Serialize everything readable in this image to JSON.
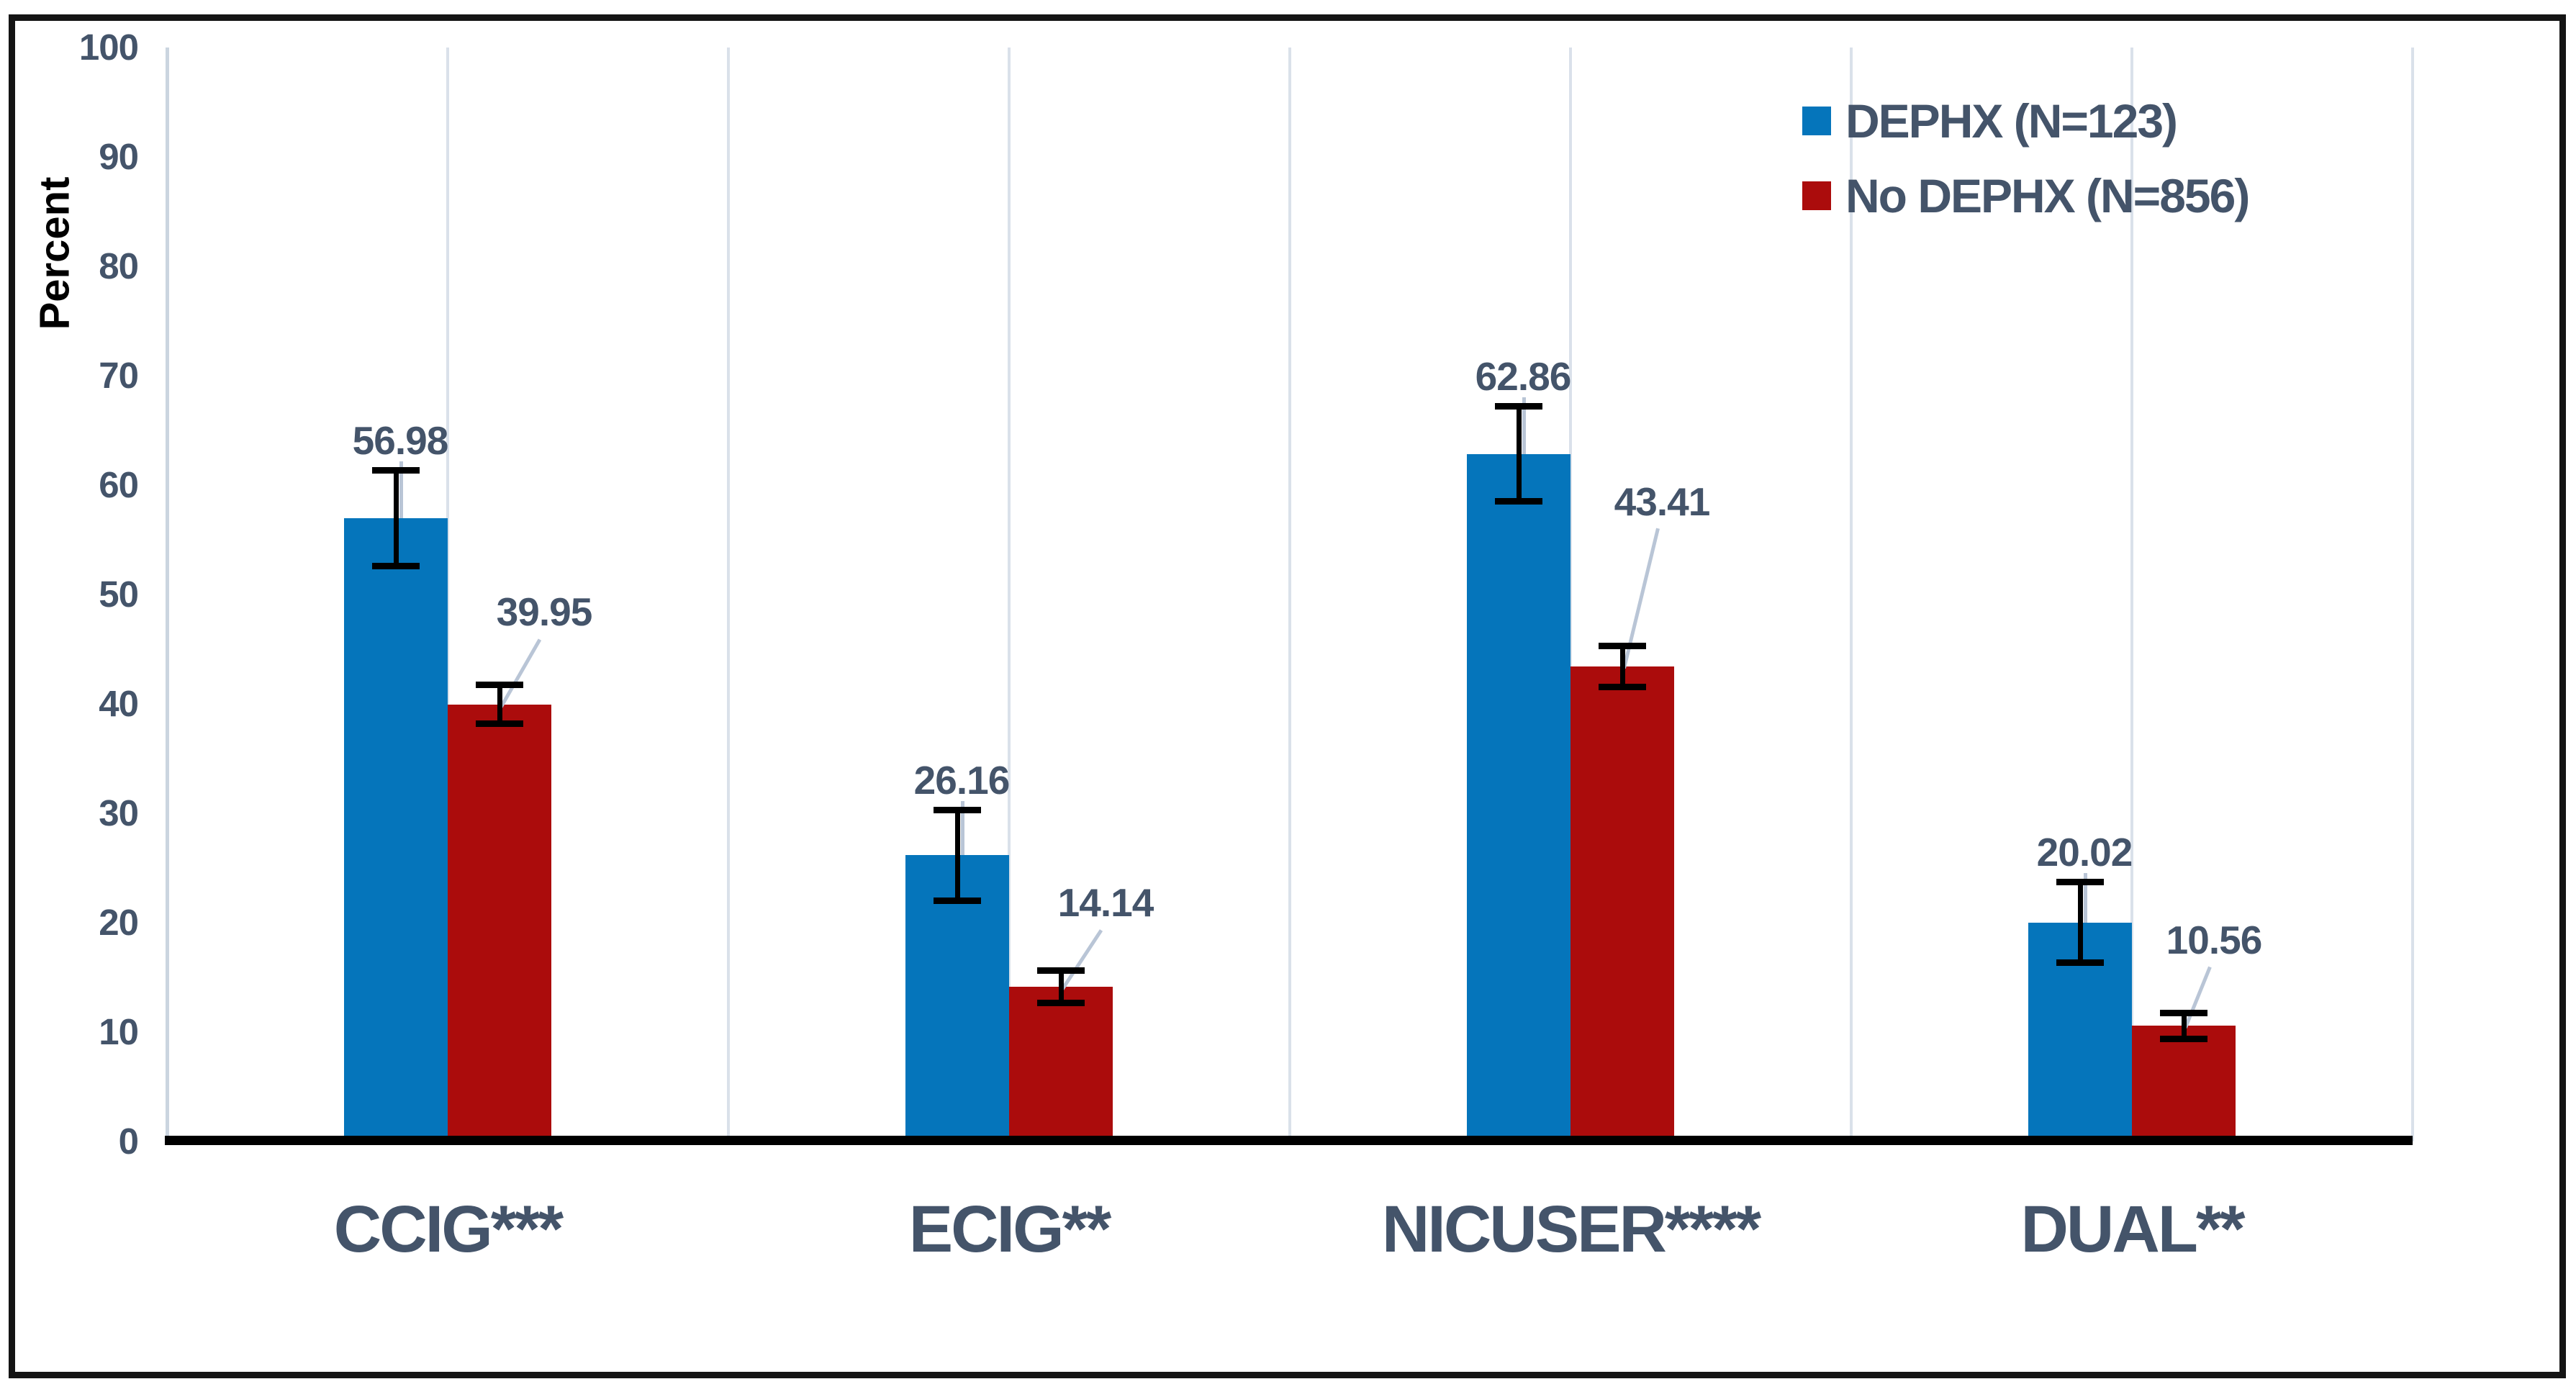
{
  "figure": {
    "background": "#FFFFFF",
    "frame_color": "#141414",
    "text_color": "#44546A",
    "grid_color": "#DAE1EA",
    "axis_line_color": "#CBD5E0",
    "baseline_color": "#000000",
    "error_bar_color": "#000000",
    "leader_line_color": "#B9C5D6"
  },
  "chart_data": {
    "type": "bar",
    "title": "",
    "xlabel": "",
    "ylabel": "Percent",
    "ylim": [
      0,
      100
    ],
    "yticks": [
      0,
      10,
      20,
      30,
      40,
      50,
      60,
      70,
      80,
      90,
      100
    ],
    "grid": "vertical-only",
    "legend_position": "top-right",
    "data_labels": true,
    "categories": [
      "CCIG***",
      "ECIG**",
      "NICUSER****",
      "DUAL**"
    ],
    "series": [
      {
        "name": "DEPHX (N=123)",
        "color": "#0575BB",
        "values": [
          56.98,
          26.16,
          62.86,
          20.02
        ],
        "errors": [
          4.4,
          4.2,
          4.4,
          3.7
        ]
      },
      {
        "name": "No DEPHX (N=856)",
        "color": "#AB0C0C",
        "values": [
          39.95,
          14.14,
          43.41,
          10.56
        ],
        "errors": [
          1.8,
          1.5,
          1.9,
          1.2
        ]
      }
    ],
    "red_label_rise": [
      100,
      88,
      200,
      90
    ],
    "red_label_dx": [
      62,
      62,
      55,
      42
    ]
  }
}
